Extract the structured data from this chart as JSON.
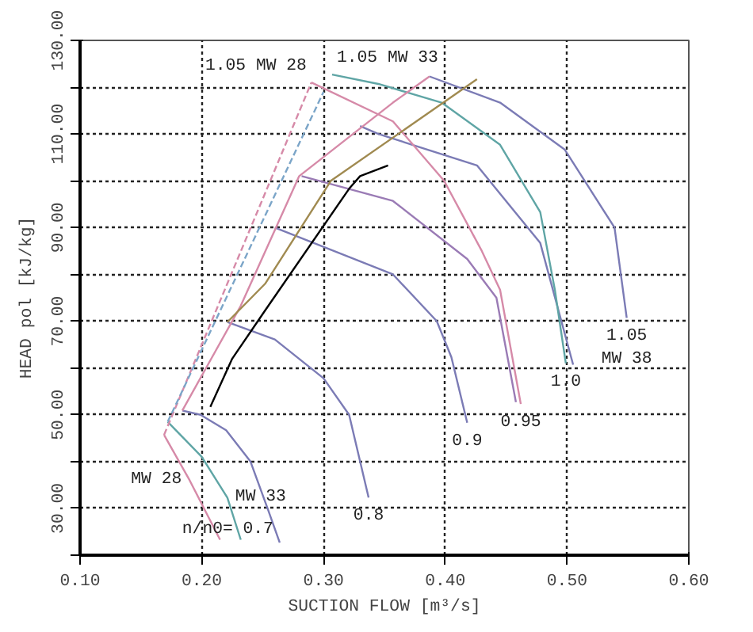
{
  "chart_data": {
    "type": "line",
    "xlabel": "SUCTION FLOW [m³/s]",
    "ylabel": "HEAD pol [kJ/kg]",
    "xlim": [
      0.1,
      0.6
    ],
    "ylim": [
      20,
      130
    ],
    "xticks": [
      {
        "value": 0.1,
        "label": "0.10"
      },
      {
        "value": 0.2,
        "label": "0.20"
      },
      {
        "value": 0.3,
        "label": "0.30"
      },
      {
        "value": 0.4,
        "label": "0.40"
      },
      {
        "value": 0.5,
        "label": "0.50"
      },
      {
        "value": 0.6,
        "label": "0.60"
      }
    ],
    "yticks": [
      {
        "value": 20,
        "label": null
      },
      {
        "value": 30,
        "label": "30.00"
      },
      {
        "value": 40,
        "label": null
      },
      {
        "value": 50,
        "label": "50.00"
      },
      {
        "value": 60,
        "label": null
      },
      {
        "value": 70,
        "label": "70.00"
      },
      {
        "value": 80,
        "label": null
      },
      {
        "value": 90,
        "label": "90.00"
      },
      {
        "value": 100,
        "label": null
      },
      {
        "value": 110,
        "label": "110.00"
      },
      {
        "value": 120,
        "label": null
      },
      {
        "value": 130,
        "label": "130.00"
      }
    ],
    "grid": true,
    "marker": "none",
    "series": [
      {
        "color": "#7b7bb5",
        "x": [
          0.184,
          0.199,
          0.22,
          0.24,
          0.254,
          0.264
        ],
        "values": [
          50.9,
          50,
          46.7,
          40,
          30,
          22.7
        ]
      },
      {
        "color": "#7b7bb5",
        "x": [
          0.221,
          0.26,
          0.3,
          0.321,
          0.337
        ],
        "values": [
          69.8,
          66.1,
          57.8,
          50,
          32.3
        ]
      },
      {
        "color": "#7b7bb5",
        "x": [
          0.26,
          0.357,
          0.393,
          0.405,
          0.418
        ],
        "values": [
          90,
          80,
          70,
          62.3,
          48.3
        ]
      },
      {
        "color": "#9a7bb5",
        "x": [
          0.282,
          0.357,
          0.418,
          0.442,
          0.458
        ],
        "values": [
          101,
          95.7,
          83.3,
          75,
          52.7
        ]
      },
      {
        "color": "#7b7bb5",
        "x": [
          0.33,
          0.345,
          0.426,
          0.478,
          0.505
        ],
        "values": [
          111.7,
          110,
          103.3,
          86.7,
          60.7
        ]
      },
      {
        "color": "#7b7bb5",
        "x": [
          0.387,
          0.445,
          0.498,
          0.539,
          0.549
        ],
        "values": [
          122.3,
          116.7,
          106.7,
          90,
          70.7
        ]
      },
      {
        "color": "#d68aa8",
        "x": [
          0.29,
          0.357,
          0.399,
          0.43,
          0.445,
          0.462
        ],
        "values": [
          121,
          112.7,
          100,
          85,
          76.7,
          52.3
        ]
      },
      {
        "color": "#5fa5a5",
        "x": [
          0.307,
          0.345,
          0.397,
          0.445,
          0.478,
          0.49,
          0.499
        ],
        "values": [
          122.7,
          120.7,
          116.7,
          107.7,
          93.3,
          76.7,
          61
        ]
      },
      {
        "color": "#d68aa8",
        "x": [
          0.169,
          0.19,
          0.215
        ],
        "values": [
          45.7,
          36,
          23.3
        ]
      },
      {
        "color": "#5fa5a5",
        "x": [
          0.172,
          0.2,
          0.221,
          0.232
        ],
        "values": [
          48.5,
          41,
          32.3,
          23.3
        ]
      },
      {
        "color": "#d68aa8",
        "line_style": "dashed",
        "x": [
          0.169,
          0.29
        ],
        "values": [
          45.7,
          121
        ]
      },
      {
        "color": "#7ba5c8",
        "line_style": "dashed",
        "x": [
          0.172,
          0.3
        ],
        "values": [
          48.5,
          119
        ]
      },
      {
        "color": "#d68aa8",
        "x": [
          0.184,
          0.232,
          0.28,
          0.357,
          0.387
        ],
        "values": [
          50.9,
          73.3,
          101,
          116.7,
          122.3
        ]
      },
      {
        "color": "#a08a50",
        "x": [
          0.221,
          0.252,
          0.306,
          0.426
        ],
        "values": [
          69.8,
          78,
          100,
          121.7
        ]
      },
      {
        "color": "#000000",
        "x": [
          0.207,
          0.225,
          0.252,
          0.321,
          0.33,
          0.353
        ],
        "values": [
          51.7,
          62,
          72.3,
          98.3,
          101,
          103.3
        ]
      }
    ],
    "annotations": [
      {
        "text": "1.05 MW 28",
        "x": 0.29,
        "y": 121
      },
      {
        "text": "1.05 MW 33",
        "x": 0.307,
        "y": 122.7
      },
      {
        "text": "1.05\nMW 38",
        "x": 0.549,
        "y": 70.7
      },
      {
        "text": "1.0",
        "x": 0.499,
        "y": 61
      },
      {
        "text": "0.95",
        "x": 0.462,
        "y": 52.3
      },
      {
        "text": "0.9",
        "x": 0.418,
        "y": 48.3
      },
      {
        "text": "0.8",
        "x": 0.337,
        "y": 32.3
      },
      {
        "text": "MW 28",
        "x": 0.19,
        "y": 36
      },
      {
        "text": "MW 33",
        "x": 0.221,
        "y": 32.3
      },
      {
        "text": "n/n0= 0.7",
        "x": 0.264,
        "y": 22.7
      }
    ]
  }
}
